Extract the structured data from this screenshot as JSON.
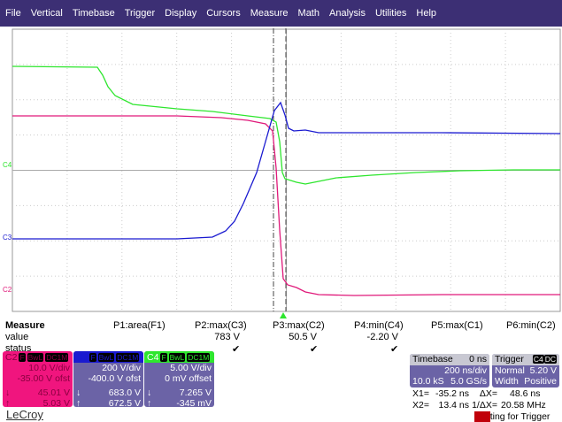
{
  "menu": [
    "File",
    "Vertical",
    "Timebase",
    "Trigger",
    "Display",
    "Cursors",
    "Measure",
    "Math",
    "Analysis",
    "Utilities",
    "Help"
  ],
  "channel_markers": {
    "c4": "C4",
    "c3": "C3",
    "c2": "C2"
  },
  "colors": {
    "c2": "#e0197a",
    "c3": "#1a1ad0",
    "c4": "#2ee62e",
    "menubar": "#3c2f74",
    "panel": "#6b63a6"
  },
  "measure": {
    "headers": [
      "Measure",
      "P1:area(F1)",
      "P2:max(C3)",
      "P3:max(C2)",
      "P4:min(C4)",
      "P5:max(C1)",
      "P6:min(C2)"
    ],
    "value_label": "value",
    "status_label": "status",
    "values": [
      "",
      "783 V",
      "50.5 V",
      "-2.20 V",
      "",
      ""
    ],
    "status": [
      "",
      "✔",
      "✔",
      "✔",
      "",
      ""
    ]
  },
  "channels": [
    {
      "name": "C2",
      "tags": [
        "F",
        "BwL",
        "DC1M"
      ],
      "vdiv": "10.0 V/div",
      "offset": "-35.00 V ofst",
      "down": "45.01 V",
      "up": "5.03 V"
    },
    {
      "name": "C3",
      "tags": [
        "F",
        "BwL",
        "DC1M"
      ],
      "vdiv": "200 V/div",
      "offset": "-400.0 V ofst",
      "down": "683.0 V",
      "up": "672.5 V"
    },
    {
      "name": "C4",
      "tags": [
        "F",
        "BwL",
        "DC1M"
      ],
      "vdiv": "5.00 V/div",
      "offset": "0 mV offset",
      "down": "7.265 V",
      "up": "-345 mV"
    }
  ],
  "timebase": {
    "title": "Timebase",
    "delay": "0 ns",
    "tdiv": "200 ns/div",
    "samples": "10.0 kS",
    "rate": "5.0 GS/s"
  },
  "trigger": {
    "title": "Trigger",
    "src": "C4",
    "coupling": "DC",
    "mode": "Normal",
    "level": "5.20 V",
    "type": "Width",
    "slope": "Positive"
  },
  "cursors": {
    "x1_label": "X1=",
    "x1": "-35.2 ns",
    "dx_label": "ΔX=",
    "dx": "48.6 ns",
    "x2_label": "X2=",
    "x2": "13.4 ns",
    "inv_label": "1/ΔX=",
    "inv": "20.58 MHz"
  },
  "status": {
    "highlight": "Wai",
    "rest": "ting for Trigger"
  },
  "logo": "LeCroy"
}
